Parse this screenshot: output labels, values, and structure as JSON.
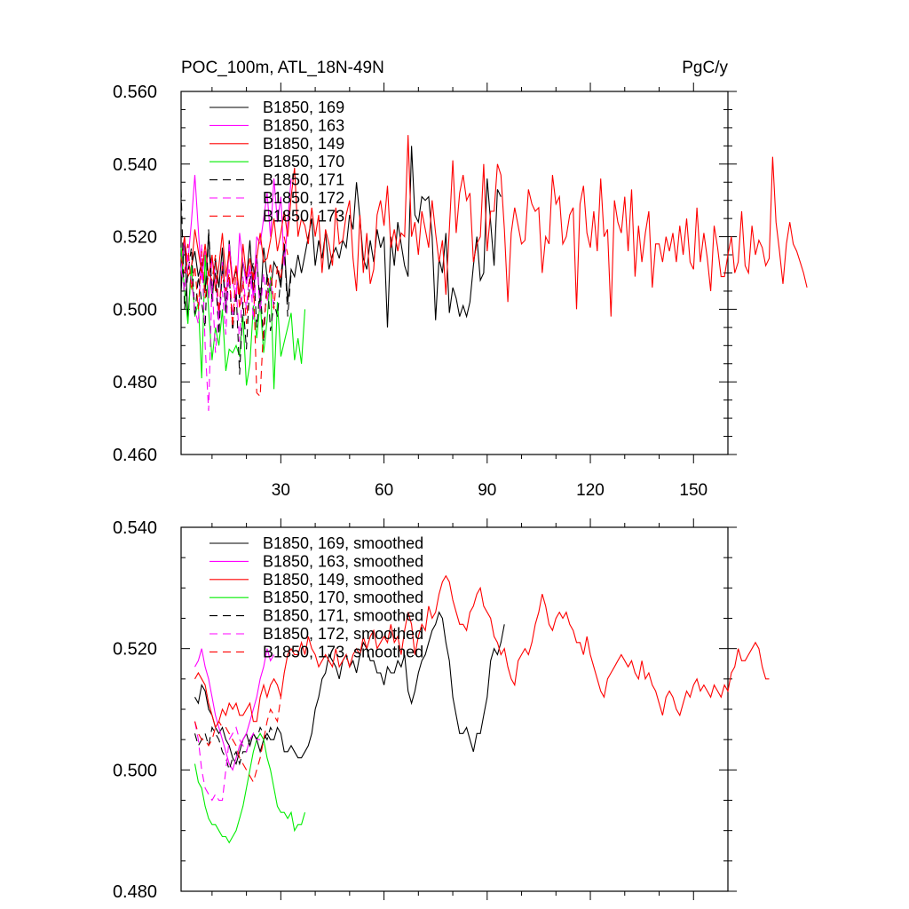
{
  "header": {
    "title_left": "POC_100m, ATL_18N-49N",
    "title_right": "PgC/y"
  },
  "chart_data": [
    {
      "type": "line",
      "xlim": [
        1,
        160
      ],
      "ylim": [
        0.46,
        0.56
      ],
      "x_ticks": [
        30,
        60,
        90,
        120,
        150
      ],
      "x_tick_labels": [
        "30",
        "60",
        "90",
        "120",
        "150"
      ],
      "y_ticks": [
        0.46,
        0.48,
        0.5,
        0.52,
        0.54,
        0.56
      ],
      "y_tick_labels": [
        "0.460",
        "0.480",
        "0.500",
        "0.520",
        "0.540",
        "0.560"
      ],
      "legend_position": "top-left",
      "series": [
        {
          "name": "B1850, 169",
          "color": "#000000",
          "dash": "solid",
          "x_start": 1,
          "values": [
            0.505,
            0.52,
            0.497,
            0.512,
            0.516,
            0.509,
            0.513,
            0.505,
            0.521,
            0.502,
            0.514,
            0.506,
            0.517,
            0.499,
            0.519,
            0.507,
            0.511,
            0.503,
            0.513,
            0.508,
            0.519,
            0.504,
            0.515,
            0.5,
            0.517,
            0.509,
            0.505,
            0.513,
            0.511,
            0.506,
            0.518,
            0.502,
            0.511,
            0.509,
            0.515,
            0.51,
            0.515,
            0.52,
            0.525,
            0.512,
            0.519,
            0.514,
            0.521,
            0.511,
            0.515,
            0.517,
            0.514,
            0.519,
            0.517,
            0.526,
            0.522,
            0.535,
            0.525,
            0.514,
            0.511,
            0.519,
            0.513,
            0.522,
            0.517,
            0.52,
            0.495,
            0.52,
            0.512,
            0.524,
            0.518,
            0.512,
            0.509,
            0.545,
            0.526,
            0.524,
            0.531,
            0.53,
            0.531,
            0.52,
            0.497,
            0.514,
            0.51,
            0.521,
            0.499,
            0.506,
            0.503,
            0.498,
            0.501,
            0.498,
            0.502,
            0.512,
            0.52,
            0.508,
            0.51,
            0.536,
            0.524,
            0.512,
            0.533,
            0.531
          ]
        },
        {
          "name": "B1850, 163",
          "color": "#ff00ff",
          "dash": "solid",
          "x_start": 1,
          "values": [
            0.511,
            0.519,
            0.513,
            0.524,
            0.537,
            0.522,
            0.508,
            0.516,
            0.503,
            0.514,
            0.509,
            0.497,
            0.513,
            0.501,
            0.518,
            0.508,
            0.503,
            0.521,
            0.513,
            0.507,
            0.512,
            0.503,
            0.52,
            0.518,
            0.525,
            0.532,
            0.52,
            0.536,
            0.524,
            0.531,
            0.512,
            0.524,
            0.536
          ]
        },
        {
          "name": "B1850, 149",
          "color": "#ff0000",
          "dash": "solid",
          "x_start": 1,
          "values": [
            0.514,
            0.52,
            0.509,
            0.511,
            0.522,
            0.516,
            0.51,
            0.518,
            0.509,
            0.515,
            0.505,
            0.512,
            0.521,
            0.509,
            0.516,
            0.507,
            0.512,
            0.504,
            0.518,
            0.509,
            0.514,
            0.508,
            0.514,
            0.521,
            0.513,
            0.514,
            0.519,
            0.525,
            0.516,
            0.521,
            0.527,
            0.52,
            0.531,
            0.539,
            0.52,
            0.525,
            0.523,
            0.518,
            0.528,
            0.52,
            0.526,
            0.51,
            0.522,
            0.518,
            0.512,
            0.528,
            0.518,
            0.519,
            0.526,
            0.53,
            0.514,
            0.505,
            0.526,
            0.51,
            0.521,
            0.507,
            0.511,
            0.526,
            0.53,
            0.523,
            0.534,
            0.517,
            0.522,
            0.516,
            0.521,
            0.52,
            0.548,
            0.52,
            0.524,
            0.515,
            0.527,
            0.522,
            0.517,
            0.53,
            0.521,
            0.513,
            0.519,
            0.504,
            0.522,
            0.541,
            0.521,
            0.532,
            0.537,
            0.53,
            0.532,
            0.513,
            0.518,
            0.52,
            0.54,
            0.516,
            0.527,
            0.527,
            0.54,
            0.537,
            0.522,
            0.502,
            0.521,
            0.528,
            0.523,
            0.518,
            0.519,
            0.533,
            0.529,
            0.527,
            0.528,
            0.51,
            0.52,
            0.518,
            0.537,
            0.529,
            0.531,
            0.518,
            0.52,
            0.526,
            0.528,
            0.5,
            0.529,
            0.534,
            0.521,
            0.517,
            0.527,
            0.516,
            0.536,
            0.52,
            0.522,
            0.498,
            0.53,
            0.524,
            0.521,
            0.531,
            0.516,
            0.533,
            0.509,
            0.523,
            0.513,
            0.521,
            0.527,
            0.506,
            0.518,
            0.518,
            0.513,
            0.52,
            0.516,
            0.521,
            0.513,
            0.523,
            0.515,
            0.525,
            0.513,
            0.511,
            0.528,
            0.513,
            0.521,
            0.514,
            0.505,
            0.523,
            0.517,
            0.509,
            0.509,
            0.515,
            0.52,
            0.51,
            0.513,
            0.527,
            0.512,
            0.51,
            0.523,
            0.515,
            0.519,
            0.517,
            0.512,
            0.514,
            0.542,
            0.524,
            0.516,
            0.507,
            0.518,
            0.524,
            0.518,
            0.516,
            0.513,
            0.51,
            0.506
          ]
        },
        {
          "name": "B1850, 170",
          "color": "#00ee00",
          "dash": "solid",
          "x_start": 1,
          "values": [
            0.517,
            0.505,
            0.496,
            0.512,
            0.498,
            0.502,
            0.481,
            0.515,
            0.5,
            0.486,
            0.495,
            0.49,
            0.5,
            0.483,
            0.489,
            0.488,
            0.49,
            0.487,
            0.498,
            0.479,
            0.485,
            0.501,
            0.492,
            0.502,
            0.488,
            0.497,
            0.509,
            0.478,
            0.502,
            0.487,
            0.491,
            0.495,
            0.499,
            0.486,
            0.492,
            0.485,
            0.5
          ]
        },
        {
          "name": "B1850, 171",
          "color": "#000000",
          "dash": "dashed",
          "x_start": 1,
          "values": [
            0.533,
            0.5,
            0.51,
            0.517,
            0.498,
            0.509,
            0.502,
            0.495,
            0.522,
            0.505,
            0.51,
            0.493,
            0.512,
            0.5,
            0.509,
            0.494,
            0.505,
            0.482,
            0.502,
            0.489,
            0.508,
            0.513,
            0.495,
            0.506,
            0.491,
            0.51,
            0.494,
            0.502,
            0.498,
            0.509,
            0.518,
            0.498,
            0.51
          ]
        },
        {
          "name": "B1850, 172",
          "color": "#ff00ff",
          "dash": "dashed",
          "x_start": 1,
          "values": [
            0.511,
            0.505,
            0.515,
            0.508,
            0.5,
            0.496,
            0.518,
            0.49,
            0.472,
            0.508,
            0.488,
            0.5,
            0.505,
            0.493,
            0.511,
            0.498,
            0.506,
            0.491,
            0.509,
            0.5,
            0.512,
            0.497,
            0.514,
            0.499,
            0.51,
            0.502,
            0.508,
            0.5
          ]
        },
        {
          "name": "B1850, 173",
          "color": "#ff0000",
          "dash": "dashed",
          "x_start": 1,
          "values": [
            0.514,
            0.51,
            0.518,
            0.505,
            0.512,
            0.5,
            0.516,
            0.503,
            0.51,
            0.508,
            0.515,
            0.499,
            0.512,
            0.505,
            0.51,
            0.495,
            0.512,
            0.5,
            0.508,
            0.496,
            0.51,
            0.51,
            0.477,
            0.476,
            0.496,
            0.505,
            0.513,
            0.5,
            0.512,
            0.508,
            0.52,
            0.515
          ]
        }
      ]
    },
    {
      "type": "line",
      "xlim": [
        1,
        160
      ],
      "ylim": [
        0.48,
        0.54
      ],
      "x_ticks": [
        30,
        60,
        90,
        120,
        150
      ],
      "y_ticks": [
        0.48,
        0.5,
        0.52,
        0.54
      ],
      "y_tick_labels": [
        "0.480",
        "0.500",
        "0.520",
        "0.540"
      ],
      "legend_position": "top-left",
      "series": [
        {
          "name": "B1850, 169, smoothed",
          "color": "#000000",
          "dash": "solid",
          "x_start": 5,
          "values": [
            0.512,
            0.511,
            0.514,
            0.513,
            0.51,
            0.509,
            0.507,
            0.506,
            0.507,
            0.505,
            0.504,
            0.502,
            0.501,
            0.503,
            0.505,
            0.506,
            0.504,
            0.506,
            0.505,
            0.503,
            0.505,
            0.506,
            0.505,
            0.505,
            0.507,
            0.506,
            0.503,
            0.503,
            0.504,
            0.503,
            0.502,
            0.502,
            0.503,
            0.504,
            0.506,
            0.51,
            0.512,
            0.515,
            0.516,
            0.519,
            0.518,
            0.517,
            0.515,
            0.518,
            0.519,
            0.517,
            0.518,
            0.516,
            0.519,
            0.521,
            0.52,
            0.518,
            0.518,
            0.516,
            0.516,
            0.514,
            0.517,
            0.516,
            0.516,
            0.518,
            0.517,
            0.519,
            0.513,
            0.511,
            0.513,
            0.516,
            0.518,
            0.519,
            0.521,
            0.523,
            0.524,
            0.526,
            0.525,
            0.521,
            0.518,
            0.512,
            0.509,
            0.506,
            0.506,
            0.507,
            0.505,
            0.503,
            0.506,
            0.506,
            0.509,
            0.512,
            0.518,
            0.52,
            0.519,
            0.521,
            0.524
          ]
        },
        {
          "name": "B1850, 163, smoothed",
          "color": "#ff00ff",
          "dash": "solid",
          "x_start": 5,
          "values": [
            0.517,
            0.518,
            0.52,
            0.517,
            0.515,
            0.512,
            0.509,
            0.507,
            0.505,
            0.503,
            0.501,
            0.5,
            0.502,
            0.504,
            0.505,
            0.506,
            0.508,
            0.51,
            0.512,
            0.515,
            0.517,
            0.52,
            0.518,
            0.519
          ]
        },
        {
          "name": "B1850, 149, smoothed",
          "color": "#ff0000",
          "dash": "solid",
          "x_start": 5,
          "values": [
            0.515,
            0.516,
            0.515,
            0.514,
            0.511,
            0.509,
            0.507,
            0.508,
            0.51,
            0.509,
            0.511,
            0.51,
            0.511,
            0.509,
            0.509,
            0.51,
            0.511,
            0.508,
            0.508,
            0.512,
            0.514,
            0.512,
            0.514,
            0.515,
            0.514,
            0.512,
            0.516,
            0.519,
            0.52,
            0.519,
            0.519,
            0.521,
            0.519,
            0.522,
            0.52,
            0.519,
            0.517,
            0.518,
            0.519,
            0.518,
            0.517,
            0.52,
            0.517,
            0.518,
            0.519,
            0.517,
            0.519,
            0.52,
            0.519,
            0.522,
            0.52,
            0.522,
            0.523,
            0.52,
            0.521,
            0.522,
            0.521,
            0.524,
            0.521,
            0.522,
            0.519,
            0.523,
            0.526,
            0.524,
            0.519,
            0.522,
            0.524,
            0.523,
            0.527,
            0.525,
            0.526,
            0.529,
            0.531,
            0.532,
            0.531,
            0.528,
            0.526,
            0.524,
            0.524,
            0.523,
            0.526,
            0.527,
            0.529,
            0.53,
            0.527,
            0.526,
            0.525,
            0.522,
            0.521,
            0.519,
            0.52,
            0.517,
            0.515,
            0.514,
            0.518,
            0.519,
            0.52,
            0.519,
            0.521,
            0.524,
            0.526,
            0.529,
            0.527,
            0.524,
            0.523,
            0.525,
            0.526,
            0.525,
            0.526,
            0.524,
            0.523,
            0.521,
            0.521,
            0.519,
            0.522,
            0.519,
            0.517,
            0.515,
            0.513,
            0.512,
            0.515,
            0.516,
            0.517,
            0.518,
            0.519,
            0.518,
            0.517,
            0.518,
            0.516,
            0.515,
            0.518,
            0.515,
            0.516,
            0.514,
            0.513,
            0.511,
            0.509,
            0.512,
            0.513,
            0.512,
            0.51,
            0.509,
            0.511,
            0.513,
            0.512,
            0.514,
            0.515,
            0.513,
            0.514,
            0.513,
            0.512,
            0.514,
            0.513,
            0.512,
            0.514,
            0.513,
            0.516,
            0.517,
            0.52,
            0.518,
            0.518,
            0.519,
            0.52,
            0.521,
            0.52,
            0.517,
            0.515,
            0.515
          ]
        },
        {
          "name": "B1850, 170, smoothed",
          "color": "#00ee00",
          "dash": "solid",
          "x_start": 5,
          "values": [
            0.501,
            0.498,
            0.497,
            0.494,
            0.492,
            0.491,
            0.491,
            0.49,
            0.489,
            0.489,
            0.488,
            0.489,
            0.49,
            0.492,
            0.494,
            0.497,
            0.5,
            0.503,
            0.505,
            0.506,
            0.505,
            0.502,
            0.5,
            0.497,
            0.494,
            0.493,
            0.493,
            0.492,
            0.493,
            0.49,
            0.491,
            0.491,
            0.493
          ]
        },
        {
          "name": "B1850, 171, smoothed",
          "color": "#000000",
          "dash": "dashed",
          "x_start": 5,
          "values": [
            0.506,
            0.504,
            0.505,
            0.506,
            0.504,
            0.507,
            0.506,
            0.505,
            0.503,
            0.502,
            0.5,
            0.502,
            0.503,
            0.501,
            0.503,
            0.503,
            0.505,
            0.506,
            0.505,
            0.507,
            0.506,
            0.505,
            0.507,
            0.506
          ]
        },
        {
          "name": "B1850, 172, smoothed",
          "color": "#ff00ff",
          "dash": "dashed",
          "x_start": 5,
          "values": [
            0.508,
            0.505,
            0.5,
            0.497,
            0.496,
            0.495,
            0.496,
            0.495,
            0.495,
            0.5,
            0.505,
            0.506,
            0.507,
            0.505,
            0.504,
            0.503,
            0.505,
            0.506,
            0.505,
            0.505
          ]
        },
        {
          "name": "B1850, 173, smoothed",
          "color": "#ff0000",
          "dash": "dashed",
          "x_start": 5,
          "values": [
            0.508,
            0.506,
            0.505,
            0.505,
            0.504,
            0.505,
            0.507,
            0.508,
            0.507,
            0.507,
            0.506,
            0.505,
            0.504,
            0.502,
            0.501,
            0.5,
            0.499,
            0.498,
            0.5,
            0.502,
            0.505,
            0.508,
            0.51,
            0.509,
            0.508,
            0.512
          ]
        }
      ]
    }
  ]
}
